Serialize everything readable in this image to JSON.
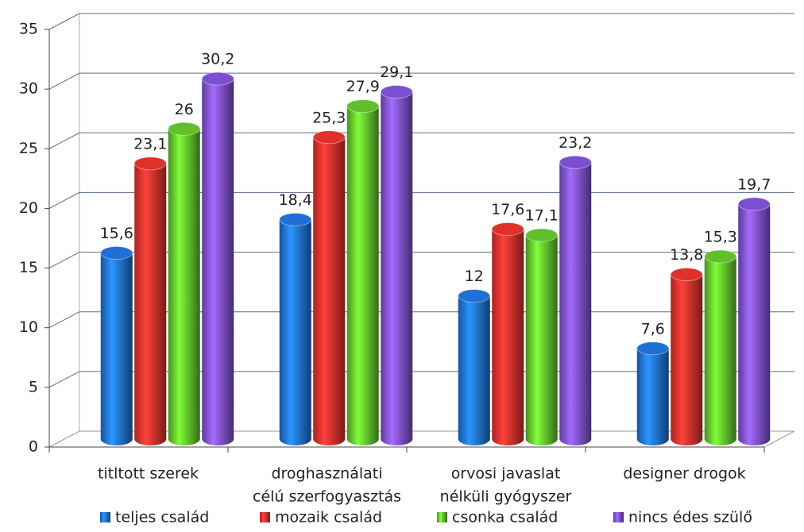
{
  "chart_data": {
    "type": "bar",
    "categories": [
      [
        "titltott szerek"
      ],
      [
        "droghasználati",
        "célú szerfogyasztás"
      ],
      [
        "orvosi javaslat",
        "nélküli gyógyszer"
      ],
      [
        "designer drogok"
      ]
    ],
    "series": [
      {
        "name": "teljes család",
        "color": "#1f6fd6",
        "values": [
          15.6,
          18.4,
          12,
          7.6
        ],
        "value_labels": [
          "15,6",
          "18,4",
          "12",
          "7,6"
        ]
      },
      {
        "name": "mozaik család",
        "color": "#e0302a",
        "values": [
          23.1,
          25.3,
          17.6,
          13.8
        ],
        "value_labels": [
          "23,1",
          "25,3",
          "17,6",
          "13,8"
        ]
      },
      {
        "name": "csonka család",
        "color": "#5fc02a",
        "values": [
          26,
          27.9,
          17.1,
          15.3
        ],
        "value_labels": [
          "26",
          "27,9",
          "17,1",
          "15,3"
        ]
      },
      {
        "name": "nincs édes szülő",
        "color": "#7a4fd0",
        "values": [
          30.2,
          29.1,
          23.2,
          19.7
        ],
        "value_labels": [
          "30,2",
          "29,1",
          "23,2",
          "19,7"
        ]
      }
    ],
    "ylim": [
      0,
      35
    ],
    "yticks": [
      0,
      5,
      10,
      15,
      20,
      25,
      30,
      35
    ],
    "grid": true,
    "legend": "bottom"
  }
}
